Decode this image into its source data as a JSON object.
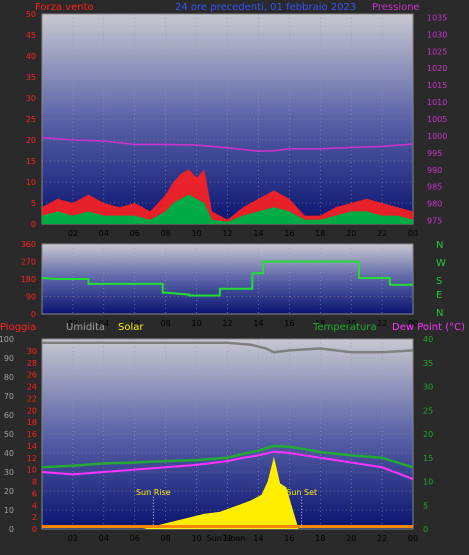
{
  "header": {
    "left_label": "Forza vento",
    "center_label": "24 ore precedenti, 01 febbraio 2023",
    "right_label": "Pressione"
  },
  "colors": {
    "wind": "#ff2020",
    "gust": "#00aa44",
    "pressure": "#cc33cc",
    "direction": "#22dd33",
    "rain": "#ff2020",
    "humidity": "#a0a0a0",
    "solar": "#ffee00",
    "temperature": "#22aa33",
    "dewpoint": "#ff33ff",
    "bg_top": "#c8c8d0",
    "bg_bottom": "#0a1470"
  },
  "bottom_header": {
    "rain": "Pioggia",
    "humidity": "Umidita",
    "solar": "Solar",
    "temperature": "Temperatura",
    "dewpoint": "Dew Point (°C)"
  },
  "compass": [
    "N",
    "W",
    "S",
    "E",
    "N"
  ],
  "x_ticks": [
    "02",
    "04",
    "06",
    "08",
    "10",
    "12",
    "14",
    "16",
    "18",
    "20",
    "22",
    "00"
  ],
  "annotations": {
    "sunrise": "Sun Rise",
    "sunset": "Sun Set",
    "solar_noon": "Sun Noon"
  },
  "chart_data": [
    {
      "type": "line",
      "name": "wind_pressure",
      "x_range_hours": [
        0,
        24
      ],
      "left_axis": {
        "label": "Forza vento",
        "ticks": [
          0,
          5,
          10,
          15,
          20,
          25,
          30,
          35,
          40,
          45,
          50
        ],
        "ylim": [
          0,
          50
        ]
      },
      "right_axis": {
        "label": "Pressione",
        "ticks": [
          975,
          980,
          985,
          990,
          995,
          1000,
          1005,
          1010,
          1015,
          1020,
          1025,
          1030,
          1035
        ],
        "ylim": [
          974,
          1036
        ]
      },
      "series": [
        {
          "name": "Pressione",
          "axis": "right",
          "x": [
            0,
            2,
            4,
            6,
            8,
            10,
            12,
            14,
            15,
            16,
            18,
            20,
            22,
            24
          ],
          "y": [
            999.5,
            998.8,
            998.5,
            997.5,
            997.5,
            997.3,
            996.5,
            995.5,
            995.6,
            996.2,
            996.2,
            996.6,
            996.9,
            997.6
          ]
        },
        {
          "name": "wind_gust",
          "axis": "left",
          "x": [
            0,
            1,
            2,
            3,
            4,
            5,
            6,
            7,
            8,
            8.5,
            9,
            9.5,
            10,
            10.5,
            11,
            12,
            13,
            14,
            15,
            16,
            17,
            18,
            19,
            20,
            21,
            22,
            23,
            24
          ],
          "y": [
            4,
            6,
            5,
            7,
            5,
            4,
            5,
            3,
            7,
            10,
            12,
            13,
            11,
            13,
            3,
            1,
            4,
            6,
            8,
            6,
            2,
            2,
            4,
            5,
            6,
            5,
            4,
            3
          ]
        },
        {
          "name": "wind_avg",
          "axis": "left",
          "x": [
            0,
            1,
            2,
            3,
            4,
            5,
            6,
            7,
            8,
            8.5,
            9,
            9.5,
            10,
            10.5,
            11,
            12,
            13,
            14,
            15,
            16,
            17,
            18,
            19,
            20,
            21,
            22,
            23,
            24
          ],
          "y": [
            2,
            3,
            2,
            3,
            2,
            2,
            2,
            1,
            3,
            5,
            6,
            7,
            6,
            5,
            1,
            0.5,
            2,
            3,
            4,
            3,
            1,
            1,
            2,
            3,
            3,
            2,
            2,
            1
          ]
        }
      ]
    },
    {
      "type": "line",
      "name": "wind_direction",
      "x_range_hours": [
        0,
        24
      ],
      "left_axis": {
        "ticks": [
          0,
          90,
          180,
          270,
          360
        ],
        "ylim": [
          0,
          360
        ]
      },
      "series": [
        {
          "name": "direction",
          "x": [
            0,
            1,
            3,
            3.01,
            7.8,
            7.81,
            8,
            9.5,
            9.51,
            11.5,
            11.51,
            13.6,
            13.61,
            14.3,
            14.31,
            20.5,
            20.51,
            22.5,
            22.51,
            24
          ],
          "y": [
            185,
            180,
            180,
            155,
            155,
            110,
            110,
            100,
            95,
            95,
            130,
            130,
            210,
            210,
            270,
            270,
            185,
            185,
            150,
            150
          ]
        }
      ]
    },
    {
      "type": "line",
      "name": "rain_humidity_solar_temp_dew",
      "x_range_hours": [
        0,
        24
      ],
      "left_axis_outer": {
        "label": "Umidita",
        "ticks": [
          0,
          10,
          20,
          30,
          40,
          50,
          60,
          70,
          80,
          90,
          100
        ],
        "ylim": [
          0,
          100
        ]
      },
      "left_axis_inner": {
        "label": "Pioggia",
        "ticks": [
          0,
          2,
          4,
          6,
          8,
          10,
          12,
          14,
          16,
          18,
          20,
          22,
          24,
          26,
          28,
          30
        ],
        "ylim": [
          0,
          32
        ]
      },
      "right_axis": {
        "label": "Dew Point (°C)",
        "ticks": [
          0,
          5,
          10,
          15,
          20,
          25,
          30,
          35,
          40
        ],
        "ylim": [
          0,
          40
        ]
      },
      "series": [
        {
          "name": "Umidita",
          "axis": "outer",
          "x": [
            0,
            4,
            8,
            12,
            13.5,
            14.5,
            15,
            16,
            18,
            20,
            22,
            24
          ],
          "y": [
            98,
            98,
            98,
            98,
            97,
            95,
            93,
            94,
            95,
            93,
            93,
            94
          ]
        },
        {
          "name": "Temperatura",
          "axis": "right",
          "x": [
            0,
            2,
            4,
            6,
            8,
            10,
            12,
            13,
            14,
            15,
            16,
            17,
            18,
            20,
            22,
            24
          ],
          "y": [
            13,
            13.3,
            13.8,
            14,
            14.3,
            14.5,
            15,
            15.8,
            16.5,
            17.5,
            17.3,
            16.8,
            16.2,
            15.5,
            15,
            13
          ]
        },
        {
          "name": "Dew Point",
          "axis": "right",
          "x": [
            0,
            2,
            4,
            6,
            8,
            10,
            12,
            13,
            14,
            15,
            16,
            17,
            18,
            20,
            22,
            24
          ],
          "y": [
            12,
            11.5,
            12,
            12.5,
            13,
            13.5,
            14.3,
            15,
            15.5,
            16.3,
            16,
            15.5,
            15,
            14,
            13,
            10.5
          ]
        },
        {
          "name": "Solar",
          "axis": "outer",
          "x": [
            6.5,
            7.5,
            8.5,
            9.5,
            10.5,
            11.5,
            12.5,
            13.5,
            14.2,
            14.6,
            15,
            15.4,
            15.8,
            16.3,
            16.6
          ],
          "y": [
            0,
            2,
            4,
            6,
            8,
            9,
            12,
            15,
            18,
            25,
            38,
            24,
            22,
            8,
            0
          ]
        },
        {
          "name": "Pioggia",
          "axis": "inner",
          "x": [
            0,
            24
          ],
          "y": [
            0,
            0
          ]
        }
      ],
      "sunrise_hour": 7.2,
      "sunset_hour": 16.8,
      "solar_noon_hour": 11.9
    }
  ]
}
